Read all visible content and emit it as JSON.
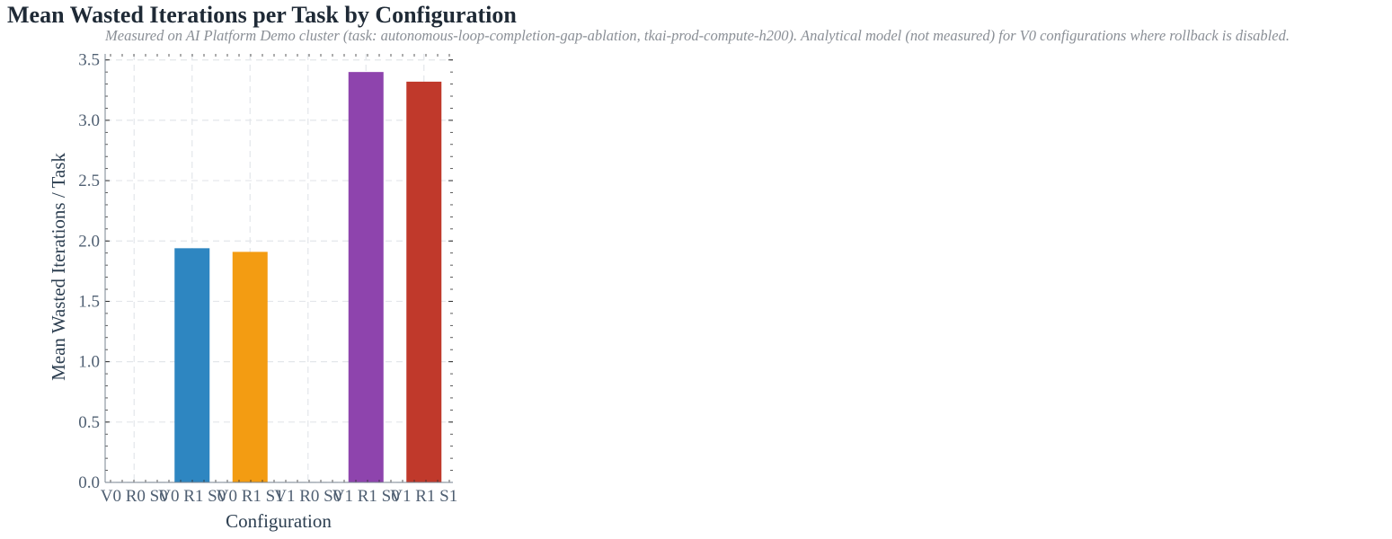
{
  "chart_data": {
    "type": "bar",
    "title": "Mean Wasted Iterations per Task by Configuration",
    "subtitle": "Measured on AI Platform Demo cluster (task: autonomous-loop-completion-gap-ablation, tkai-prod-compute-h200). Analytical model (not measured) for V0 configurations where rollback is disabled.",
    "xlabel": "Configuration",
    "ylabel": "Mean Wasted Iterations / Task",
    "categories": [
      "V0 R0 S0",
      "V0 R1 S0",
      "V0 R1 S1",
      "V1 R0 S0",
      "V1 R1 S0",
      "V1 R1 S1"
    ],
    "values": [
      0,
      1.94,
      1.91,
      0,
      3.4,
      3.32
    ],
    "colors": [
      "#2e86c1",
      "#2e86c1",
      "#f39c12",
      "#2e86c1",
      "#8e44ad",
      "#c0392b"
    ],
    "ylim": [
      0,
      3.55
    ],
    "yticks": [
      "0.0",
      "0.5",
      "1.0",
      "1.5",
      "2.0",
      "2.5",
      "3.0",
      "3.5"
    ],
    "grid": true,
    "legend": "none"
  }
}
